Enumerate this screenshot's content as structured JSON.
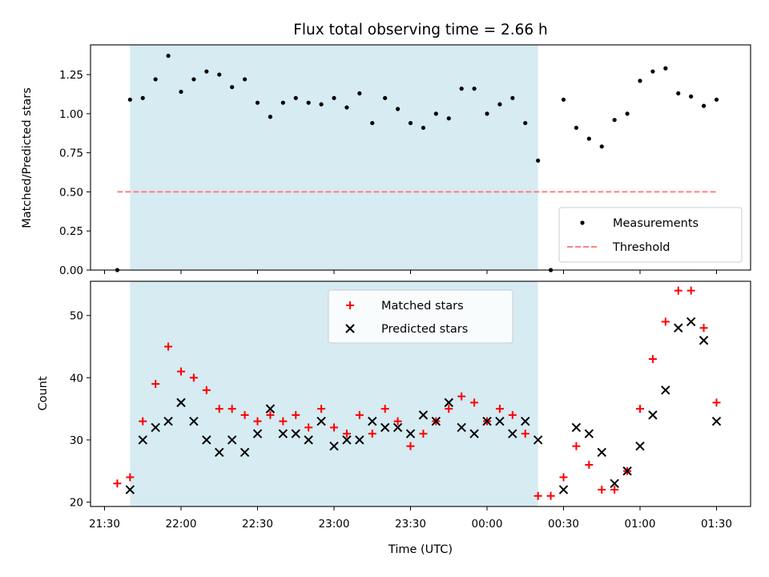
{
  "chart_data": [
    {
      "type": "scatter",
      "title": "Flux total observing time = 2.66 h",
      "xlabel": "",
      "ylabel": "Matched/Predicted stars",
      "ylim": [
        0,
        1.44
      ],
      "yticks": [
        "0.00",
        "0.25",
        "0.50",
        "0.75",
        "1.00",
        "1.25"
      ],
      "grid": false,
      "legend_position": "lower right",
      "shaded_span": {
        "start": "21:40",
        "end": "00:20",
        "color": "#add8e6"
      },
      "series": [
        {
          "name": "Measurements",
          "marker": "dot",
          "color": "#000000",
          "points": [
            [
              "21:35",
              0.0
            ],
            [
              "21:40",
              1.09
            ],
            [
              "21:45",
              1.1
            ],
            [
              "21:50",
              1.22
            ],
            [
              "21:55",
              1.37
            ],
            [
              "22:00",
              1.14
            ],
            [
              "22:05",
              1.22
            ],
            [
              "22:10",
              1.27
            ],
            [
              "22:15",
              1.25
            ],
            [
              "22:20",
              1.17
            ],
            [
              "22:25",
              1.22
            ],
            [
              "22:30",
              1.07
            ],
            [
              "22:35",
              0.98
            ],
            [
              "22:40",
              1.07
            ],
            [
              "22:45",
              1.1
            ],
            [
              "22:50",
              1.07
            ],
            [
              "22:55",
              1.06
            ],
            [
              "23:00",
              1.1
            ],
            [
              "23:05",
              1.04
            ],
            [
              "23:10",
              1.13
            ],
            [
              "23:15",
              0.94
            ],
            [
              "23:20",
              1.1
            ],
            [
              "23:25",
              1.03
            ],
            [
              "23:30",
              0.94
            ],
            [
              "23:35",
              0.91
            ],
            [
              "23:40",
              1.0
            ],
            [
              "23:45",
              0.97
            ],
            [
              "23:50",
              1.16
            ],
            [
              "23:55",
              1.16
            ],
            [
              "00:00",
              1.0
            ],
            [
              "00:05",
              1.06
            ],
            [
              "00:10",
              1.1
            ],
            [
              "00:15",
              0.94
            ],
            [
              "00:20",
              0.7
            ],
            [
              "00:25",
              0.0
            ],
            [
              "00:30",
              1.09
            ],
            [
              "00:35",
              0.91
            ],
            [
              "00:40",
              0.84
            ],
            [
              "00:45",
              0.79
            ],
            [
              "00:50",
              0.96
            ],
            [
              "00:55",
              1.0
            ],
            [
              "01:00",
              1.21
            ],
            [
              "01:05",
              1.27
            ],
            [
              "01:10",
              1.29
            ],
            [
              "01:15",
              1.13
            ],
            [
              "01:20",
              1.11
            ],
            [
              "01:25",
              1.05
            ],
            [
              "01:30",
              1.09
            ]
          ]
        },
        {
          "name": "Threshold",
          "marker": "dashed-line",
          "color": "#ff7f7f",
          "points": [
            [
              "21:35",
              0.5
            ],
            [
              "01:30",
              0.5
            ]
          ]
        }
      ]
    },
    {
      "type": "scatter",
      "title": "",
      "xlabel": "Time (UTC)",
      "ylabel": "Count",
      "xticks": [
        "21:30",
        "22:00",
        "22:30",
        "23:00",
        "23:30",
        "00:00",
        "00:30",
        "01:00",
        "01:30"
      ],
      "yticks": [
        "20",
        "30",
        "40",
        "50"
      ],
      "ylim": [
        19.3,
        55.5
      ],
      "grid": false,
      "legend_position": "upper center",
      "shaded_span": {
        "start": "21:40",
        "end": "00:20",
        "color": "#add8e6"
      },
      "x": [
        "21:35",
        "21:40",
        "21:45",
        "21:50",
        "21:55",
        "22:00",
        "22:05",
        "22:10",
        "22:15",
        "22:20",
        "22:25",
        "22:30",
        "22:35",
        "22:40",
        "22:45",
        "22:50",
        "22:55",
        "23:00",
        "23:05",
        "23:10",
        "23:15",
        "23:20",
        "23:25",
        "23:30",
        "23:35",
        "23:40",
        "23:45",
        "23:50",
        "23:55",
        "00:00",
        "00:05",
        "00:10",
        "00:15",
        "00:20",
        "00:25",
        "00:30",
        "00:35",
        "00:40",
        "00:45",
        "00:50",
        "00:55",
        "01:00",
        "01:05",
        "01:10",
        "01:15",
        "01:20",
        "01:25",
        "01:30"
      ],
      "series": [
        {
          "name": "Matched stars",
          "marker": "+",
          "color": "#ff0000",
          "values": [
            23,
            24,
            33,
            39,
            45,
            41,
            40,
            38,
            35,
            35,
            34,
            33,
            34,
            33,
            34,
            32,
            35,
            32,
            31,
            34,
            31,
            35,
            33,
            29,
            31,
            33,
            35,
            37,
            36,
            33,
            35,
            34,
            31,
            21,
            21,
            24,
            29,
            26,
            22,
            22,
            25,
            35,
            43,
            49,
            54,
            54,
            48,
            36
          ]
        },
        {
          "name": "Predicted stars",
          "marker": "x",
          "color": "#000000",
          "values": [
            null,
            22,
            30,
            32,
            33,
            36,
            33,
            30,
            28,
            30,
            28,
            31,
            35,
            31,
            31,
            30,
            33,
            29,
            30,
            30,
            33,
            32,
            32,
            31,
            34,
            33,
            36,
            32,
            31,
            33,
            33,
            31,
            33,
            30,
            null,
            22,
            32,
            31,
            28,
            23,
            25,
            29,
            34,
            38,
            48,
            49,
            46,
            33
          ]
        }
      ]
    }
  ]
}
